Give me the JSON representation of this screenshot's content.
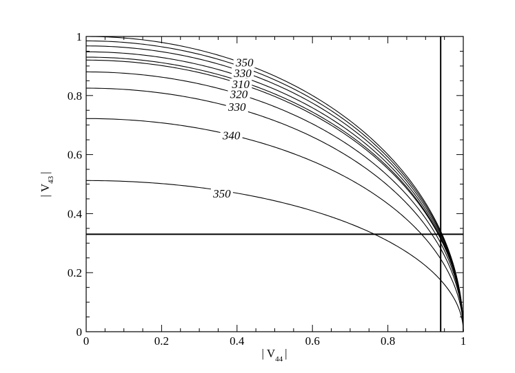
{
  "chart_data": {
    "type": "line",
    "title": "",
    "xlabel": "| V",
    "xlabel_sub": "44",
    "xlabel_end": "|",
    "ylabel": "| V",
    "ylabel_sub": "43",
    "ylabel_end": "|",
    "xlim": [
      0,
      1
    ],
    "ylim": [
      0,
      1
    ],
    "x_ticks": [
      0,
      0.2,
      0.4,
      0.6,
      0.8,
      1
    ],
    "x_tick_labels": [
      "0",
      "0.2",
      "0.4",
      "0.6",
      "0.8",
      "1"
    ],
    "y_ticks": [
      0,
      0.2,
      0.4,
      0.6,
      0.8,
      1
    ],
    "y_tick_labels": [
      "0",
      "0.2",
      "0.4",
      "0.6",
      "0.8",
      "1"
    ],
    "grid": false,
    "legend": "none",
    "series": [
      {
        "curve": "sqrt(r^2 - x^2)",
        "r": 1.0,
        "x_max": 1.0
      },
      {
        "curve": "sqrt(r^2 - x^2)",
        "r": 0.985,
        "x_max": 1.0
      },
      {
        "curve": "sqrt(r^2 - x^2)",
        "r": 0.968,
        "x_max": 1.0
      },
      {
        "curve": "sqrt(r^2 - x^2)",
        "r": 0.948,
        "x_max": 1.0
      },
      {
        "curve": "sqrt(r^2 - x^2)",
        "r": 0.93,
        "x_max": 1.0
      },
      {
        "curve": "sqrt(r^2 - x^2)",
        "r": 0.92,
        "x_max": 1.0
      },
      {
        "curve": "sqrt(r^2 - x^2)",
        "r": 0.88,
        "x_max": 1.0
      },
      {
        "curve": "sqrt(r^2 - x^2)",
        "r": 0.825,
        "x_max": 1.0
      },
      {
        "curve": "sqrt(r^2 - x^2)",
        "r": 0.722,
        "x_max": 1.0
      },
      {
        "curve": "sqrt(r^2 - x^2)",
        "r": 0.512,
        "x_max": 1.0
      }
    ],
    "curve_labels": [
      {
        "text": "350",
        "x": 0.42,
        "y": 0.913
      },
      {
        "text": "330",
        "x": 0.415,
        "y": 0.877
      },
      {
        "text": "310",
        "x": 0.41,
        "y": 0.839
      },
      {
        "text": "320",
        "x": 0.405,
        "y": 0.805
      },
      {
        "text": "330",
        "x": 0.4,
        "y": 0.762
      },
      {
        "text": "340",
        "x": 0.385,
        "y": 0.665
      },
      {
        "text": "350",
        "x": 0.36,
        "y": 0.468
      }
    ],
    "reference_lines": [
      {
        "orientation": "vertical",
        "value": 0.94
      },
      {
        "orientation": "horizontal",
        "value": 0.33
      }
    ]
  }
}
